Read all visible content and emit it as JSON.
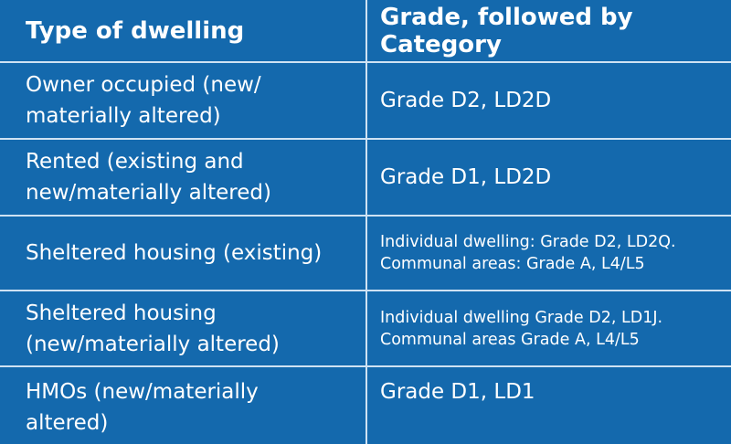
{
  "header": {
    "col1": "Type of dwelling",
    "col2": "Grade, followed by Category"
  },
  "rows": [
    {
      "type_line1": "Owner occupied (new/",
      "type_line2": "materially altered)",
      "grade_line1": "Grade D2, LD2D",
      "grade_line2": ""
    },
    {
      "type_line1": "Rented (existing and",
      "type_line2": "new/materially altered)",
      "grade_line1": "Grade D1, LD2D",
      "grade_line2": ""
    },
    {
      "type_line1": "Sheltered housing (existing)",
      "type_line2": "",
      "grade_line1": "Individual dwelling: Grade D2, LD2Q.",
      "grade_line2": "Communal areas: Grade A, L4/L5"
    },
    {
      "type_line1": "Sheltered housing",
      "type_line2": "(new/materially altered)",
      "grade_line1": "Individual dwelling Grade D2, LD1J.",
      "grade_line2": "Communal areas Grade A, L4/L5"
    },
    {
      "type_line1": "HMOs (new/materially",
      "type_line2": "altered)",
      "grade_line1": "Grade D1, LD1",
      "grade_line2": ""
    }
  ]
}
